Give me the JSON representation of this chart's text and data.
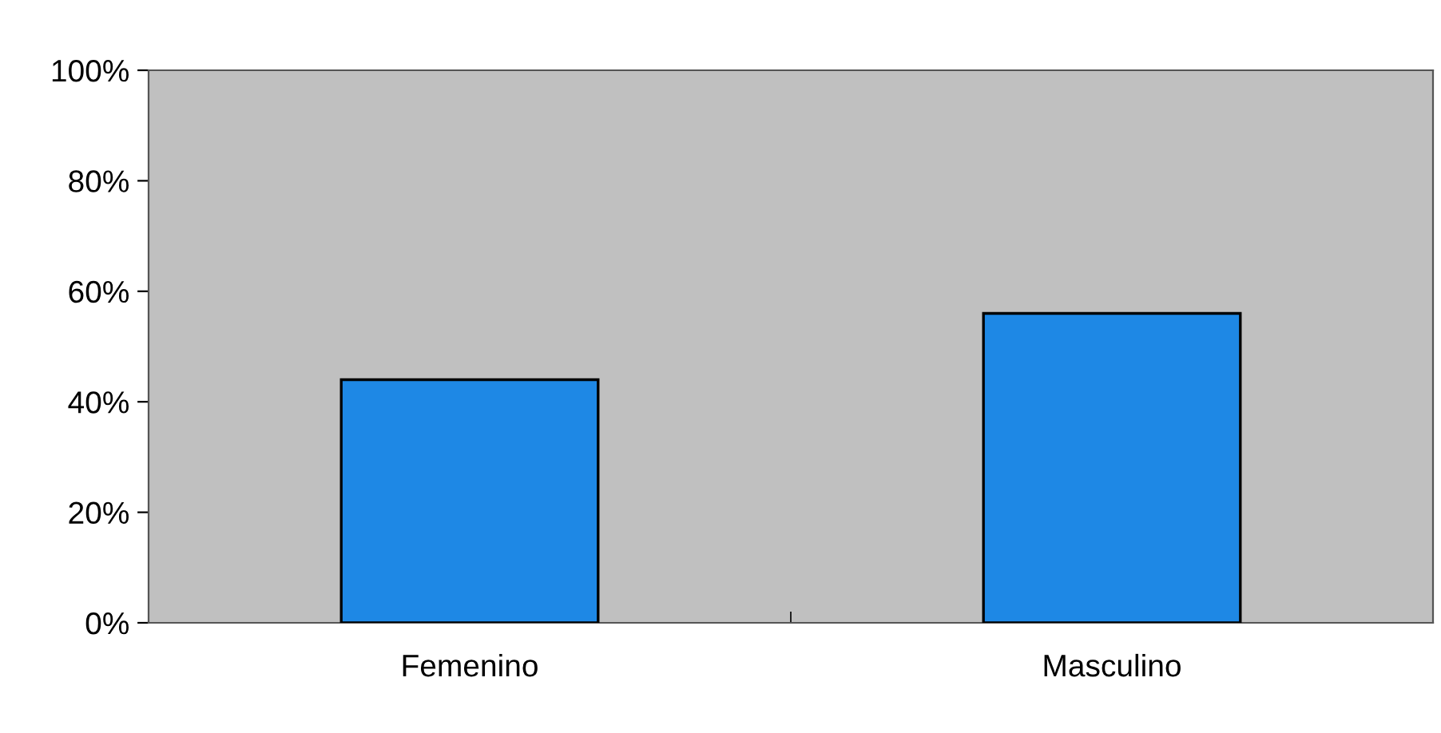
{
  "chart_data": {
    "type": "bar",
    "categories": [
      "Femenino",
      "Masculino"
    ],
    "values": [
      44,
      56
    ],
    "color": "#1e88e5",
    "ylim": [
      0,
      100
    ],
    "yticks": [
      {
        "value": 0,
        "label": "0%"
      },
      {
        "value": 20,
        "label": "20%"
      },
      {
        "value": 40,
        "label": "40%"
      },
      {
        "value": 60,
        "label": "60%"
      },
      {
        "value": 80,
        "label": "80%"
      },
      {
        "value": 100,
        "label": "100%"
      }
    ],
    "grid": false,
    "legend": false
  }
}
